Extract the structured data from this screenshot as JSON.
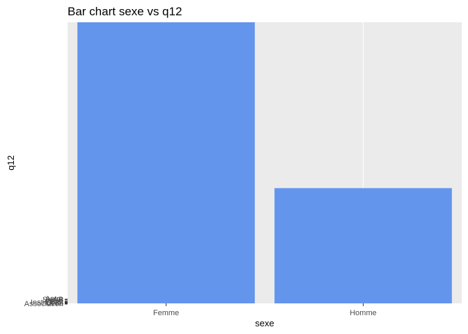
{
  "chart_data": {
    "type": "bar",
    "title": "Bar chart sexe vs q12",
    "xlabel": "sexe",
    "ylabel": "q12",
    "categories": [
      "Femme",
      "Homme"
    ],
    "values": [
      1.0,
      0.41
    ],
    "ylim": [
      0,
      1.0
    ],
    "y_tick_labels": [
      "Association",
      "ONG",
      "Institution",
      "Etat",
      "Privé",
      "SHAP",
      "Autre"
    ],
    "bar_color": "#6495ED",
    "panel_background": "#EBEBEB",
    "grid": true,
    "legend": "none"
  }
}
